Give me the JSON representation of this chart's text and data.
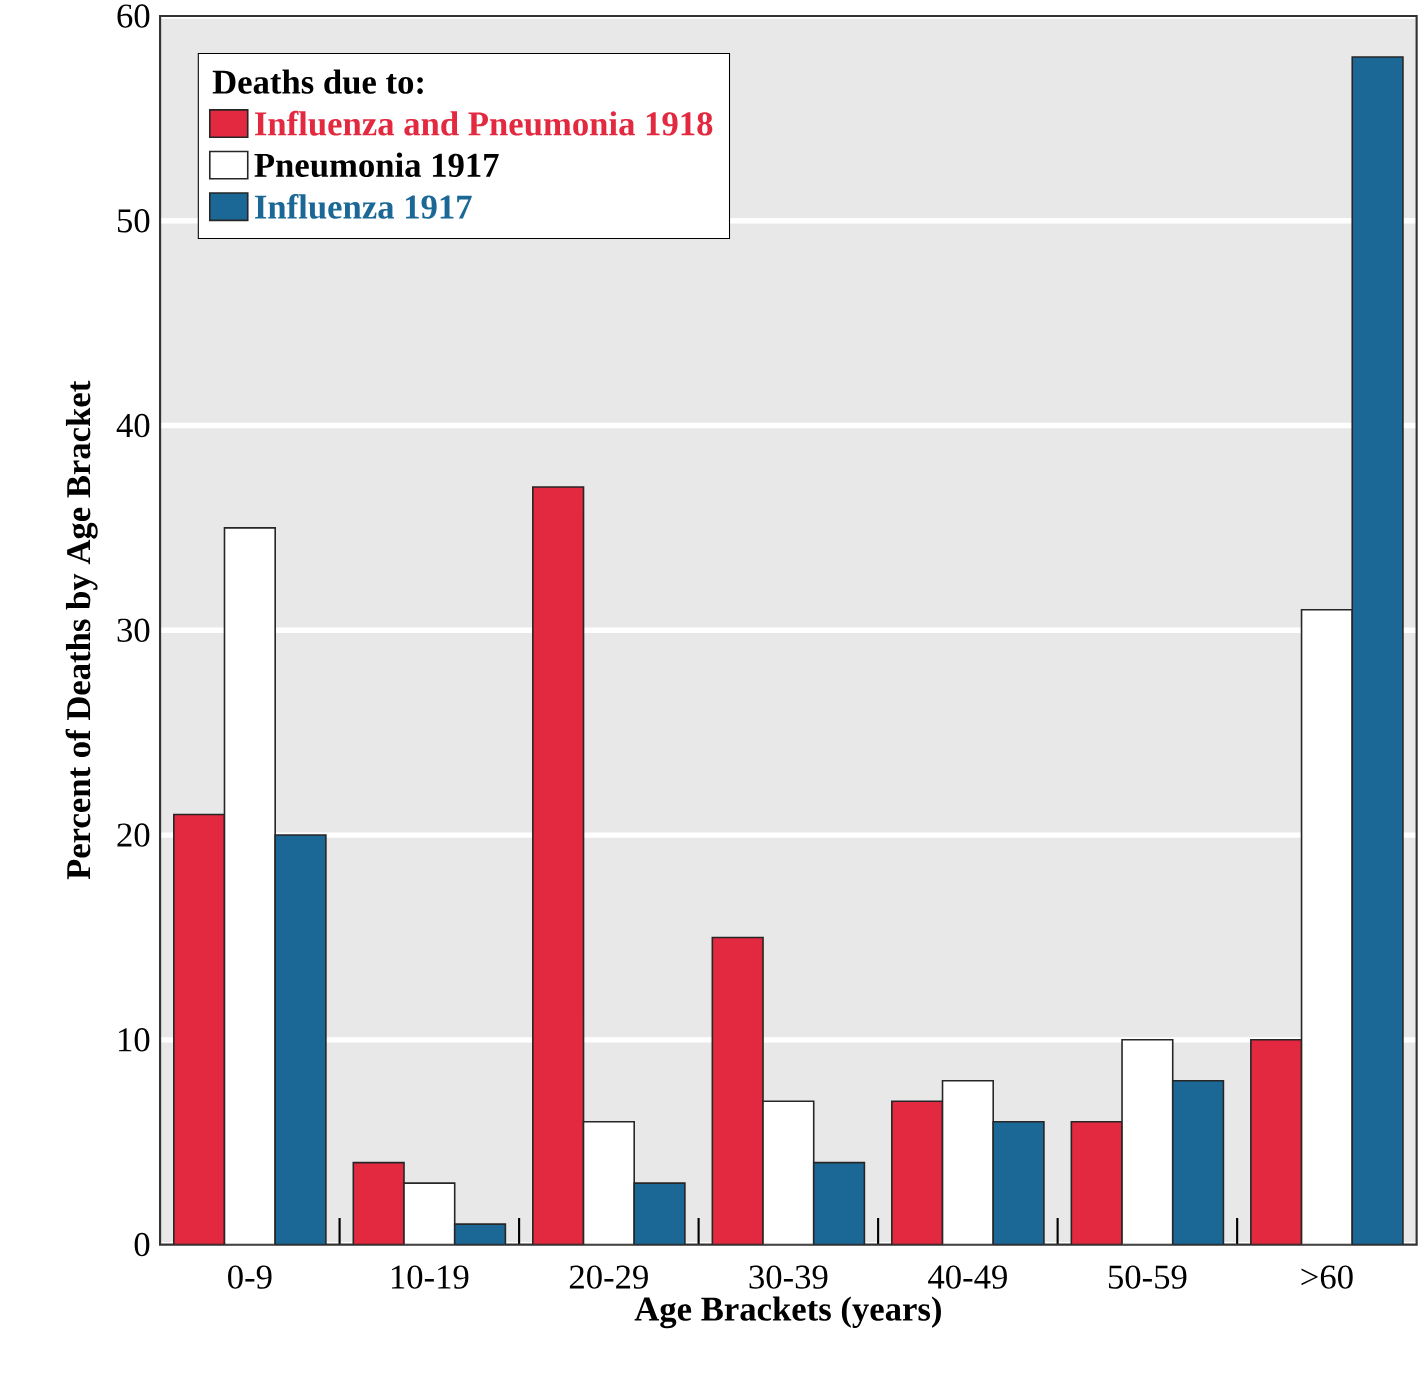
{
  "chart_data": {
    "type": "bar",
    "xlabel": "Age Brackets (years)",
    "ylabel": "Percent of Deaths by Age Bracket",
    "legend_title": "Deaths due to:",
    "categories": [
      "0-9",
      "10-19",
      "20-29",
      "30-39",
      "40-49",
      "50-59",
      ">60"
    ],
    "series": [
      {
        "name": "Influenza and Pneumonia 1918",
        "color": "#e2293f",
        "values": [
          21,
          4,
          37,
          15,
          7,
          6,
          10
        ]
      },
      {
        "name": "Pneumonia 1917",
        "color": "#ffffff",
        "values": [
          35,
          3,
          6,
          7,
          8,
          10,
          31
        ]
      },
      {
        "name": "Influenza 1917",
        "color": "#1b6896",
        "values": [
          20,
          1,
          3,
          4,
          6,
          8,
          58
        ]
      }
    ],
    "ylim": [
      0,
      60
    ],
    "yticks": [
      0,
      10,
      20,
      30,
      40,
      50,
      60
    ],
    "grid": "y",
    "legend": "top left"
  }
}
